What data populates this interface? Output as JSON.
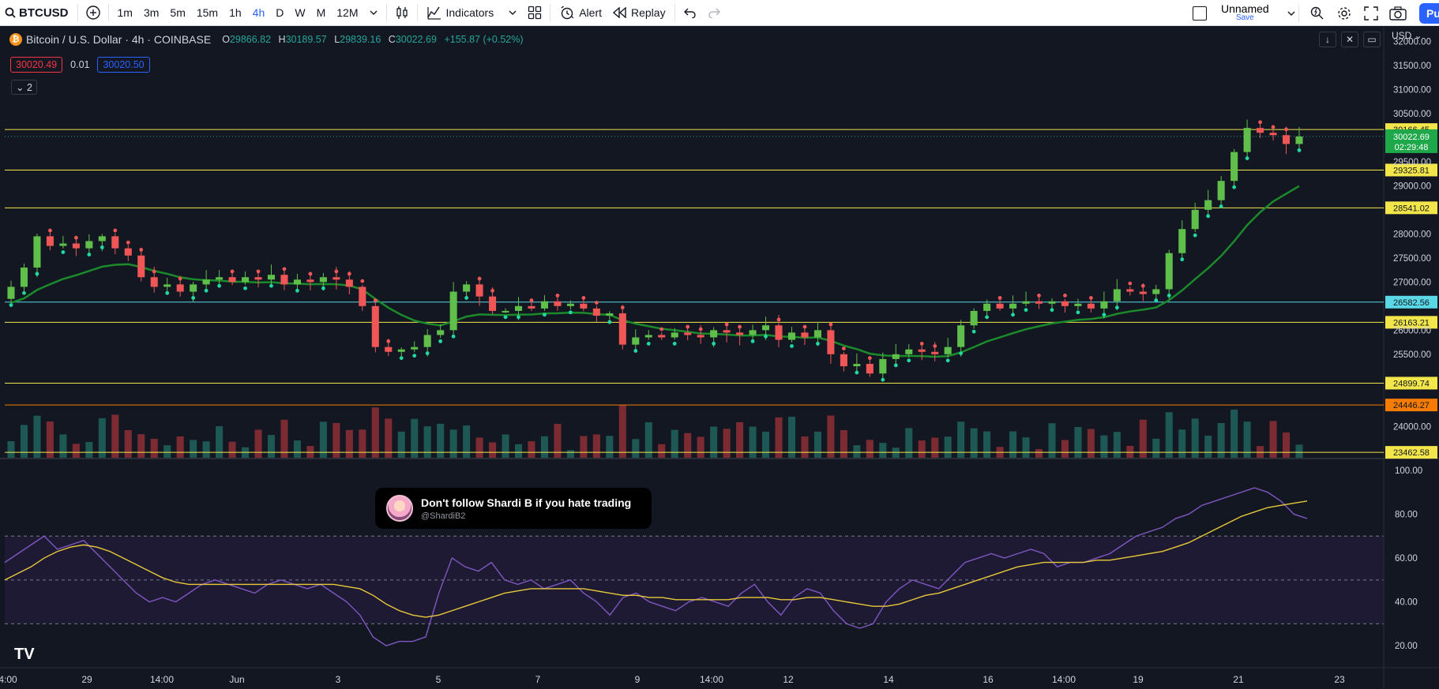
{
  "toolbar": {
    "symbol": "BTCUSD",
    "intervals": [
      "1m",
      "3m",
      "5m",
      "15m",
      "1h",
      "4h",
      "D",
      "W",
      "M",
      "12M"
    ],
    "active_interval": "4h",
    "indicators_label": "Indicators",
    "alert_label": "Alert",
    "replay_label": "Replay",
    "layout_name": "Unnamed",
    "save_label": "Save",
    "publish_label": "Pu"
  },
  "legend": {
    "title": "Bitcoin / U.S. Dollar · 4h · COINBASE",
    "open_key": "O",
    "open": "29866.82",
    "high_key": "H",
    "high": "30189.57",
    "low_key": "L",
    "low": "29839.16",
    "close_key": "C",
    "close": "30022.69",
    "change": "+155.87 (+0.52%)",
    "bid": "30020.49",
    "spread": "0.01",
    "ask": "30020.50",
    "collapsed_count": "2"
  },
  "currency": "USD",
  "popup": {
    "text": "Don't follow Shardi B if you hate trading",
    "handle": "@ShardiB2"
  },
  "colors": {
    "bull": "#26a69a",
    "bull_bright": "#5fbf4a",
    "bear": "#f05656",
    "level_line": "#f2e64b",
    "cyan_line": "#5ad8e6",
    "orange_line": "#f57c00"
  },
  "chart_data": {
    "type": "candlestick",
    "symbol": "BTCUSD",
    "timeframe": "4h",
    "price_ticks": [
      "32000.00",
      "31500.00",
      "31000.00",
      "30500.00",
      "29500.00",
      "29000.00",
      "28000.00",
      "27500.00",
      "27000.00",
      "26000.00",
      "25500.00",
      "24000.00"
    ],
    "ylim": [
      23350,
      32300
    ],
    "x_ticks": [
      "4:00",
      "29",
      "14:00",
      "Jun",
      "3",
      "5",
      "7",
      "9",
      "14:00",
      "12",
      "14",
      "16",
      "14:00",
      "19",
      "21",
      "23"
    ],
    "horizontal_levels": [
      {
        "label": "30166.45",
        "value": 30166.45,
        "color": "#f2e64b"
      },
      {
        "label": "29325.81",
        "value": 29325.81,
        "color": "#f2e64b"
      },
      {
        "label": "28541.02",
        "value": 28541.02,
        "color": "#f2e64b"
      },
      {
        "label": "26582.56",
        "value": 26582.56,
        "color": "#5ad8e6"
      },
      {
        "label": "26163.21",
        "value": 26163.21,
        "color": "#f2e64b"
      },
      {
        "label": "24899.74",
        "value": 24899.74,
        "color": "#f2e64b"
      },
      {
        "label": "24446.27",
        "value": 24446.27,
        "color": "#f57c00"
      },
      {
        "label": "23462.58",
        "value": 23462.58,
        "color": "#f2e64b"
      }
    ],
    "top_level": 32000,
    "last_price": {
      "label": "30022.69",
      "value": 30022.69,
      "countdown": "02:29:48"
    },
    "price_path": [
      [
        26650,
        26900
      ],
      [
        26900,
        27300
      ],
      [
        27300,
        27950
      ],
      [
        27950,
        27750
      ],
      [
        27750,
        27800
      ],
      [
        27800,
        27700
      ],
      [
        27700,
        27850
      ],
      [
        27850,
        27950
      ],
      [
        27950,
        27700
      ],
      [
        27700,
        27550
      ],
      [
        27550,
        27100
      ],
      [
        27100,
        26900
      ],
      [
        26900,
        26950
      ],
      [
        26950,
        26800
      ],
      [
        26800,
        26950
      ],
      [
        26950,
        27050
      ],
      [
        27050,
        27100
      ],
      [
        27100,
        27000
      ],
      [
        27000,
        27100
      ],
      [
        27100,
        27050
      ],
      [
        27050,
        27150
      ],
      [
        27150,
        26950
      ],
      [
        26950,
        27050
      ],
      [
        27050,
        27000
      ],
      [
        27000,
        27100
      ],
      [
        27100,
        27050
      ],
      [
        27050,
        26900
      ],
      [
        26900,
        26500
      ],
      [
        26500,
        25650
      ],
      [
        25650,
        25550
      ],
      [
        25550,
        25600
      ],
      [
        25600,
        25650
      ],
      [
        25650,
        25900
      ],
      [
        25900,
        26000
      ],
      [
        26000,
        26800
      ],
      [
        26800,
        26950
      ],
      [
        26950,
        26700
      ],
      [
        26700,
        26400
      ],
      [
        26400,
        26400
      ],
      [
        26400,
        26500
      ],
      [
        26500,
        26450
      ],
      [
        26450,
        26600
      ],
      [
        26600,
        26500
      ],
      [
        26500,
        26550
      ],
      [
        26550,
        26450
      ],
      [
        26450,
        26300
      ],
      [
        26300,
        26350
      ],
      [
        26350,
        25700
      ],
      [
        25700,
        25850
      ],
      [
        25850,
        25900
      ],
      [
        25900,
        25850
      ],
      [
        25850,
        25950
      ],
      [
        25950,
        25900
      ],
      [
        25900,
        25850
      ],
      [
        25850,
        26000
      ],
      [
        26000,
        25950
      ],
      [
        25950,
        25900
      ],
      [
        25900,
        26000
      ],
      [
        26000,
        26100
      ],
      [
        26100,
        25800
      ],
      [
        25800,
        25950
      ],
      [
        25950,
        25850
      ],
      [
        25850,
        26000
      ],
      [
        26000,
        25500
      ],
      [
        25500,
        25250
      ],
      [
        25250,
        25300
      ],
      [
        25300,
        25100
      ],
      [
        25100,
        25400
      ],
      [
        25400,
        25500
      ],
      [
        25500,
        25600
      ],
      [
        25600,
        25550
      ],
      [
        25550,
        25500
      ],
      [
        25500,
        25650
      ],
      [
        25650,
        26100
      ],
      [
        26100,
        26400
      ],
      [
        26400,
        26550
      ],
      [
        26550,
        26450
      ],
      [
        26450,
        26550
      ],
      [
        26550,
        26600
      ],
      [
        26600,
        26550
      ],
      [
        26550,
        26600
      ],
      [
        26600,
        26500
      ],
      [
        26500,
        26550
      ],
      [
        26550,
        26450
      ],
      [
        26450,
        26600
      ],
      [
        26600,
        26850
      ],
      [
        26850,
        26800
      ],
      [
        26800,
        26750
      ],
      [
        26750,
        26850
      ],
      [
        26850,
        27600
      ],
      [
        27600,
        28100
      ],
      [
        28100,
        28500
      ],
      [
        28500,
        28700
      ],
      [
        28700,
        29100
      ],
      [
        29100,
        29700
      ],
      [
        29700,
        30200
      ],
      [
        30200,
        30100
      ],
      [
        30100,
        30050
      ],
      [
        30050,
        29866.82
      ],
      [
        29866.82,
        30022.69
      ]
    ],
    "rsi": {
      "ticks": [
        "100.00",
        "80.00",
        "60.00",
        "40.00",
        "20.00"
      ],
      "band": [
        30,
        70
      ],
      "values": [
        58,
        62,
        66,
        70,
        64,
        66,
        68,
        62,
        56,
        50,
        44,
        40,
        42,
        40,
        44,
        48,
        50,
        48,
        46,
        44,
        48,
        50,
        48,
        46,
        48,
        44,
        40,
        34,
        24,
        20,
        22,
        22,
        24,
        44,
        60,
        56,
        54,
        58,
        50,
        48,
        50,
        46,
        48,
        50,
        44,
        40,
        34,
        42,
        44,
        40,
        38,
        36,
        40,
        42,
        40,
        38,
        44,
        48,
        40,
        34,
        42,
        46,
        44,
        36,
        30,
        28,
        30,
        40,
        46,
        50,
        48,
        46,
        52,
        58,
        60,
        62,
        60,
        62,
        64,
        62,
        56,
        58,
        58,
        60,
        62,
        66,
        70,
        72,
        74,
        78,
        80,
        84,
        86,
        88,
        90,
        92,
        90,
        86,
        80,
        78
      ],
      "ma_values": [
        50,
        53,
        56,
        60,
        63,
        65,
        66,
        65,
        63,
        60,
        57,
        54,
        51,
        49,
        48,
        48,
        48,
        48,
        48,
        48,
        48,
        48,
        48,
        48,
        48,
        48,
        47,
        46,
        43,
        39,
        36,
        34,
        33,
        34,
        36,
        38,
        40,
        42,
        44,
        45,
        46,
        46,
        46,
        46,
        46,
        45,
        44,
        43,
        43,
        42,
        42,
        41,
        41,
        41,
        41,
        41,
        42,
        42,
        42,
        41,
        41,
        42,
        42,
        41,
        40,
        39,
        38,
        38,
        39,
        41,
        43,
        44,
        46,
        48,
        50,
        52,
        54,
        56,
        57,
        58,
        58,
        58,
        58,
        59,
        59,
        60,
        61,
        62,
        63,
        65,
        67,
        70,
        73,
        76,
        79,
        81,
        83,
        84,
        85,
        86
      ]
    }
  }
}
